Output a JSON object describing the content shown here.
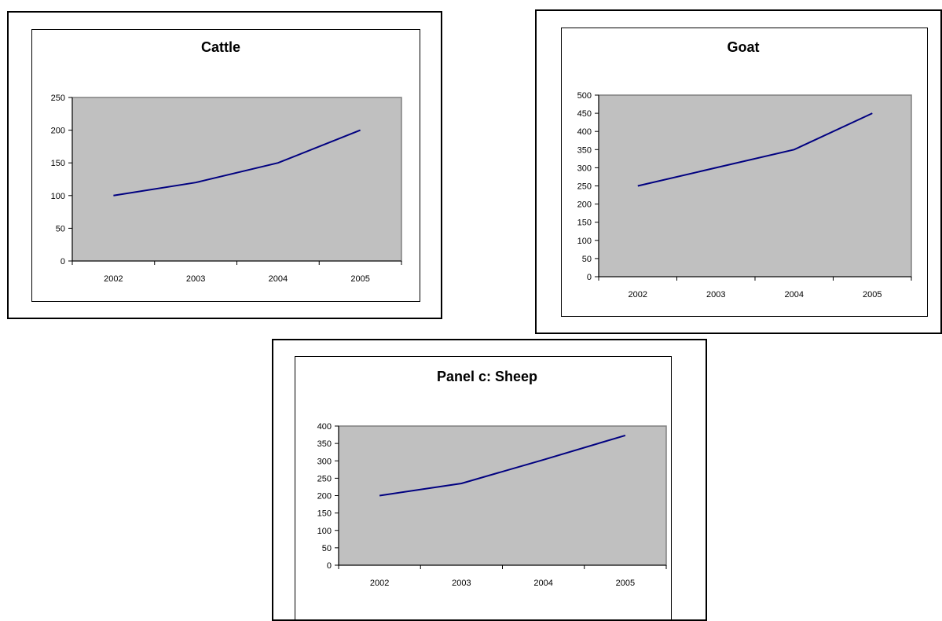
{
  "chart_data": [
    {
      "type": "line",
      "title": "Cattle",
      "categories": [
        "2002",
        "2003",
        "2004",
        "2005"
      ],
      "series": [
        {
          "values": [
            100,
            120,
            150,
            200
          ]
        }
      ],
      "yticks": [
        0,
        50,
        100,
        150,
        200,
        250
      ],
      "ylim": [
        0,
        250
      ],
      "grid": false,
      "legend": "none",
      "plot_bg": "#C0C0C0",
      "line_color": "#000080"
    },
    {
      "type": "line",
      "title": "Goat",
      "categories": [
        "2002",
        "2003",
        "2004",
        "2005"
      ],
      "series": [
        {
          "values": [
            250,
            300,
            350,
            450
          ]
        }
      ],
      "yticks": [
        0,
        50,
        100,
        150,
        200,
        250,
        300,
        350,
        400,
        450,
        500
      ],
      "ylim": [
        0,
        500
      ],
      "grid": false,
      "legend": "none",
      "plot_bg": "#C0C0C0",
      "line_color": "#000080"
    },
    {
      "type": "line",
      "title": "Panel c: Sheep",
      "categories": [
        "2002",
        "2003",
        "2004",
        "2005"
      ],
      "series": [
        {
          "values": [
            200,
            235,
            303,
            373
          ]
        }
      ],
      "yticks": [
        0,
        50,
        100,
        150,
        200,
        250,
        300,
        350,
        400
      ],
      "ylim": [
        0,
        400
      ],
      "grid": false,
      "legend": "none",
      "plot_bg": "#C0C0C0",
      "line_color": "#000080"
    }
  ]
}
